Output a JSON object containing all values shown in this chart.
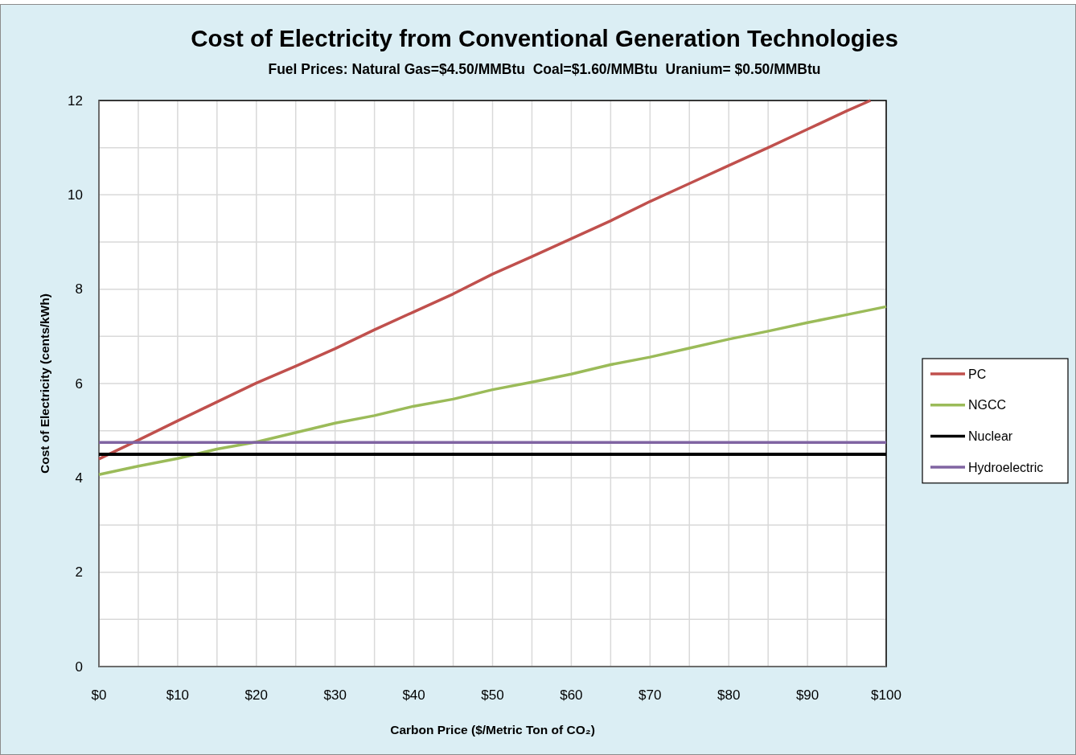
{
  "chart_data": {
    "type": "line",
    "title": "Cost of Electricity from Conventional Generation Technologies",
    "subtitle": "Fuel Prices: Natural Gas=$4.50/MMBtu  Coal=$1.60/MMBtu  Uranium= $0.50/MMBtu",
    "xlabel": "Carbon Price ($/Metric Ton of CO₂)",
    "ylabel": "Cost of Electricity (cents/kWh)",
    "xlim": [
      0,
      100
    ],
    "ylim": [
      0,
      12
    ],
    "xticks": [
      {
        "value": 0,
        "label": "$0"
      },
      {
        "value": 5,
        "label": null
      },
      {
        "value": 10,
        "label": "$10"
      },
      {
        "value": 15,
        "label": null
      },
      {
        "value": 20,
        "label": "$20"
      },
      {
        "value": 25,
        "label": null
      },
      {
        "value": 30,
        "label": "$30"
      },
      {
        "value": 35,
        "label": null
      },
      {
        "value": 40,
        "label": "$40"
      },
      {
        "value": 45,
        "label": null
      },
      {
        "value": 50,
        "label": "$50"
      },
      {
        "value": 55,
        "label": null
      },
      {
        "value": 60,
        "label": "$60"
      },
      {
        "value": 65,
        "label": null
      },
      {
        "value": 70,
        "label": "$70"
      },
      {
        "value": 75,
        "label": null
      },
      {
        "value": 80,
        "label": "$80"
      },
      {
        "value": 85,
        "label": null
      },
      {
        "value": 90,
        "label": "$90"
      },
      {
        "value": 95,
        "label": null
      },
      {
        "value": 100,
        "label": "$100"
      }
    ],
    "yticks": [
      0,
      {
        "value": 1,
        "label": null
      },
      2,
      {
        "value": 3,
        "label": null
      },
      4,
      {
        "value": 5,
        "label": null
      },
      6,
      {
        "value": 7,
        "label": null
      },
      8,
      {
        "value": 9,
        "label": null
      },
      10,
      {
        "value": 11,
        "label": null
      },
      12
    ],
    "grid": true,
    "legend": "right",
    "series": [
      {
        "name": "PC",
        "color": "#c0504d",
        "x": [
          0,
          5,
          10,
          15,
          20,
          25,
          30,
          35,
          40,
          45,
          50,
          55,
          60,
          65,
          70,
          75,
          80,
          85,
          90,
          95,
          98
        ],
        "values": [
          4.4,
          4.8,
          5.21,
          5.61,
          6.01,
          6.37,
          6.74,
          7.14,
          7.52,
          7.9,
          8.32,
          8.69,
          9.07,
          9.45,
          9.86,
          10.24,
          10.62,
          11.0,
          11.39,
          11.78,
          12.0
        ]
      },
      {
        "name": "NGCC",
        "color": "#9bbb59",
        "x": [
          0,
          5,
          10,
          15,
          20,
          25,
          30,
          35,
          40,
          45,
          50,
          55,
          60,
          65,
          70,
          75,
          80,
          85,
          90,
          95,
          100
        ],
        "values": [
          4.07,
          4.25,
          4.41,
          4.61,
          4.76,
          4.96,
          5.16,
          5.32,
          5.52,
          5.67,
          5.87,
          6.03,
          6.2,
          6.4,
          6.56,
          6.75,
          6.94,
          7.11,
          7.29,
          7.46,
          7.63
        ]
      },
      {
        "name": "Nuclear",
        "color": "#000000",
        "x": [
          0,
          100
        ],
        "values": [
          4.5,
          4.5
        ]
      },
      {
        "name": "Hydroelectric",
        "color": "#8064a2",
        "x": [
          0,
          100
        ],
        "values": [
          4.75,
          4.75
        ]
      }
    ]
  }
}
